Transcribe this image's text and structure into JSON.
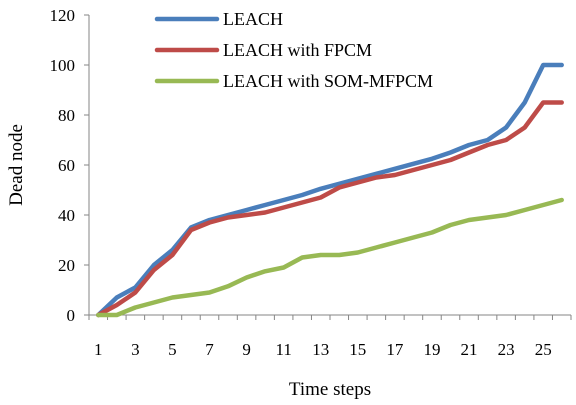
{
  "chart_data": {
    "type": "line",
    "title": "",
    "xlabel": "Time steps",
    "ylabel": "Dead node",
    "xlim": [
      1,
      26
    ],
    "ylim": [
      0,
      120
    ],
    "x_ticks": [
      1,
      3,
      5,
      7,
      9,
      11,
      13,
      15,
      17,
      19,
      21,
      23,
      25
    ],
    "y_ticks": [
      0,
      20,
      40,
      60,
      80,
      100,
      120
    ],
    "grid": false,
    "legend_position": "top-left",
    "x": [
      1,
      2,
      3,
      4,
      5,
      6,
      7,
      8,
      9,
      10,
      11,
      12,
      13,
      14,
      15,
      16,
      17,
      18,
      19,
      20,
      21,
      22,
      23,
      24,
      25,
      26
    ],
    "series": [
      {
        "name": "LEACH",
        "color": "#4a7ebb",
        "values": [
          0,
          7,
          11,
          20,
          26,
          35,
          38,
          40,
          42,
          44,
          46,
          48,
          50.5,
          52.5,
          54.5,
          56.5,
          58.5,
          60.5,
          62.5,
          65,
          68,
          70,
          75,
          85,
          100,
          100
        ]
      },
      {
        "name": "LEACH with FPCM",
        "color": "#be4b48",
        "values": [
          0,
          4,
          9,
          18,
          24,
          34,
          37,
          39,
          40,
          41,
          43,
          45,
          47,
          51,
          53,
          55,
          56,
          58,
          60,
          62,
          65,
          68,
          70,
          75,
          85,
          85
        ]
      },
      {
        "name": "LEACH with SOM-MFPCM",
        "color": "#98b954",
        "values": [
          0,
          0,
          3,
          5,
          7,
          8,
          9,
          11.5,
          15,
          17.5,
          19,
          23,
          24,
          24,
          25,
          27,
          29,
          31,
          33,
          36,
          38,
          39,
          40,
          42,
          44,
          46
        ]
      }
    ]
  }
}
